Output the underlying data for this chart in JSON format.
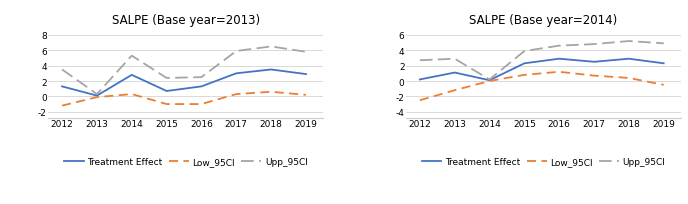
{
  "left": {
    "title": "SALPE (Base year=2013)",
    "years": [
      2012,
      2013,
      2014,
      2015,
      2016,
      2017,
      2018,
      2019
    ],
    "treatment": [
      1.3,
      0.1,
      2.8,
      0.7,
      1.3,
      3.0,
      3.5,
      2.9
    ],
    "low_95ci": [
      -1.2,
      -0.1,
      0.3,
      -1.0,
      -1.0,
      0.3,
      0.6,
      0.2
    ],
    "upp_95ci": [
      3.5,
      0.3,
      5.3,
      2.4,
      2.5,
      5.9,
      6.5,
      5.8
    ],
    "ylim": [
      -2.8,
      9.2
    ],
    "yticks": [
      -2,
      0,
      2,
      4,
      6,
      8
    ]
  },
  "right": {
    "title": "SALPE (Base year=2014)",
    "years": [
      2012,
      2013,
      2014,
      2015,
      2016,
      2017,
      2018,
      2019
    ],
    "treatment": [
      0.2,
      1.1,
      0.1,
      2.3,
      2.9,
      2.5,
      2.9,
      2.3
    ],
    "low_95ci": [
      -2.5,
      -1.2,
      0.0,
      0.8,
      1.2,
      0.7,
      0.4,
      -0.5
    ],
    "upp_95ci": [
      2.7,
      2.9,
      0.2,
      3.9,
      4.6,
      4.8,
      5.2,
      4.9
    ],
    "ylim": [
      -4.8,
      7.2
    ],
    "yticks": [
      -4,
      -2,
      0,
      2,
      4,
      6
    ]
  },
  "treatment_color": "#4472C4",
  "low_color": "#ED7D31",
  "upp_color": "#A5A5A5",
  "treatment_label": "Treatment Effect",
  "low_label": "Low_95CI",
  "upp_label": "Upp_95CI",
  "bg_color": "#FFFFFF",
  "title_fontsize": 8.5,
  "tick_fontsize": 6.5,
  "legend_fontsize": 6.5
}
